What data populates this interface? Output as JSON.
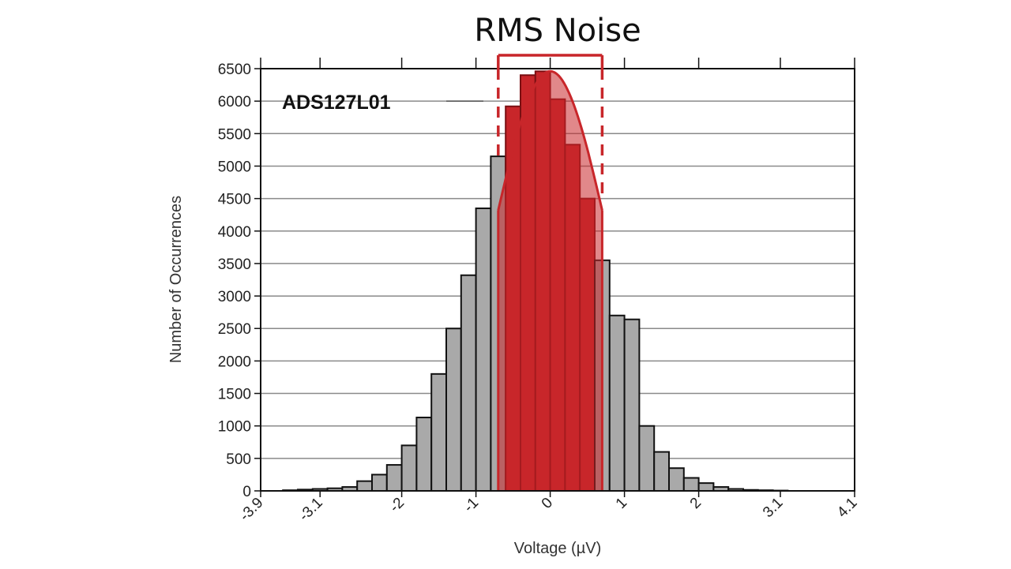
{
  "chart_data": {
    "type": "bar",
    "title": "RMS Noise",
    "annotation": "ADS127L01",
    "xlabel": "Voltage (µV)",
    "ylabel": "Number of Occurrences",
    "ylim": [
      0,
      6500
    ],
    "yticks": [
      0,
      500,
      1000,
      1500,
      2000,
      2500,
      3000,
      3500,
      4000,
      4500,
      5000,
      5500,
      6000,
      6500
    ],
    "xlim": [
      -3.9,
      4.1
    ],
    "xtick_values": [
      -3.9,
      -3.1,
      -2,
      -1,
      0,
      1,
      2,
      3.1,
      4.1
    ],
    "xtick_labels": [
      "-3.9",
      "-3.1",
      "-2",
      "-1",
      "0",
      "1",
      "2",
      "3.1",
      "4.1"
    ],
    "bin_width": 0.2,
    "bin_centers": [
      -3.5,
      -3.3,
      -3.1,
      -2.9,
      -2.7,
      -2.5,
      -2.3,
      -2.1,
      -1.9,
      -1.7,
      -1.5,
      -1.3,
      -1.1,
      -0.9,
      -0.7,
      -0.5,
      -0.3,
      -0.1,
      0.1,
      0.3,
      0.5,
      0.7,
      0.9,
      1.1,
      1.3,
      1.5,
      1.7,
      1.9,
      2.1,
      2.3,
      2.5,
      2.7,
      2.9,
      3.1,
      3.3
    ],
    "values": [
      10,
      20,
      30,
      40,
      60,
      150,
      250,
      400,
      700,
      1130,
      1800,
      2500,
      3320,
      4350,
      5150,
      5920,
      6400,
      6460,
      6030,
      5330,
      4500,
      3550,
      2700,
      2640,
      1000,
      600,
      350,
      200,
      120,
      60,
      30,
      15,
      10,
      5,
      0
    ],
    "rms_band": [
      -0.7,
      0.7
    ],
    "highlight_color": "#c8262a",
    "bar_color": "#a9a9a9",
    "grid": true
  }
}
